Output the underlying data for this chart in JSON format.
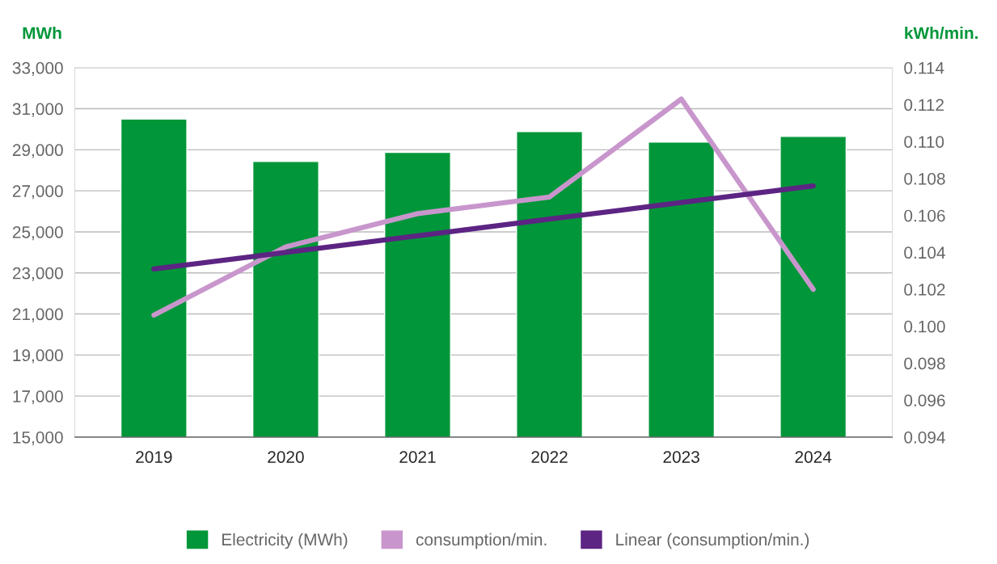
{
  "chart_data": {
    "type": "bar",
    "categories": [
      "2019",
      "2020",
      "2021",
      "2022",
      "2023",
      "2024"
    ],
    "ylabel": "MWh",
    "y2label": "kWh/min.",
    "series": [
      {
        "name": "Electricity (MWh)",
        "color": "#009639",
        "values": [
          30500,
          28430,
          28870,
          29890,
          29380,
          29650
        ]
      },
      {
        "name": "consumption/min.",
        "type": "line",
        "axis": "y2",
        "color": "#c896cc",
        "values": [
          0.1006,
          0.1043,
          0.1061,
          0.107,
          0.1123,
          0.102
        ]
      },
      {
        "name": "Linear (consumption/min.)",
        "type": "line",
        "axis": "y2",
        "color": "#5c2483",
        "values": [
          0.1031,
          0.104,
          0.1049,
          0.1058,
          0.1067,
          0.1076
        ]
      }
    ],
    "ylim": [
      15000,
      33000
    ],
    "yticks": [
      {
        "value": 15000,
        "label": "15,000"
      },
      {
        "value": 17000,
        "label": "17,000"
      },
      {
        "value": 19000,
        "label": "19,000"
      },
      {
        "value": 21000,
        "label": "21,000"
      },
      {
        "value": 23000,
        "label": "23,000"
      },
      {
        "value": 25000,
        "label": "25,000"
      },
      {
        "value": 27000,
        "label": "27,000"
      },
      {
        "value": 29000,
        "label": "29,000"
      },
      {
        "value": 31000,
        "label": "31,000"
      },
      {
        "value": 33000,
        "label": "33,000"
      }
    ],
    "y2lim": [
      0.094,
      0.114
    ],
    "y2ticks": [
      0.094,
      0.096,
      0.098,
      {
        "value": 0.1,
        "label": "0.100"
      },
      0.102,
      0.104,
      0.106,
      0.108,
      {
        "value": 0.11,
        "label": "0.110"
      },
      0.112,
      0.114
    ],
    "grid": "y",
    "legend": "bottom",
    "marker": "none",
    "line_style": "solid"
  }
}
